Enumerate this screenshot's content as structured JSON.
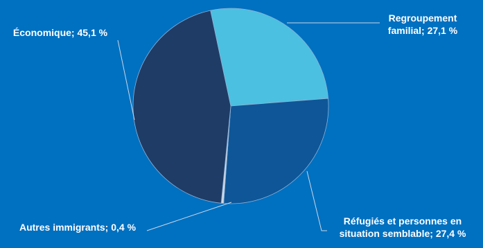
{
  "chart_data": {
    "type": "pie",
    "slices": [
      {
        "key": "regroupement",
        "label_lines": [
          "Regroupement",
          "familial; 27,1 %"
        ],
        "value": 27.1,
        "color": "#4bc0e0"
      },
      {
        "key": "refugies",
        "label_lines": [
          "Réfugiés et personnes en",
          "situation semblable; 27,4 %"
        ],
        "value": 27.4,
        "color": "#0e5697"
      },
      {
        "key": "autres",
        "label_lines": [
          "Autres immigrants; 0,4 %"
        ],
        "value": 0.4,
        "color": "#cfd8e3"
      },
      {
        "key": "economique",
        "label_lines": [
          "Économique; 45,1 %"
        ],
        "value": 45.1,
        "color": "#1f3c66"
      }
    ],
    "legend": "none",
    "data_labels": "outside with leader lines"
  }
}
